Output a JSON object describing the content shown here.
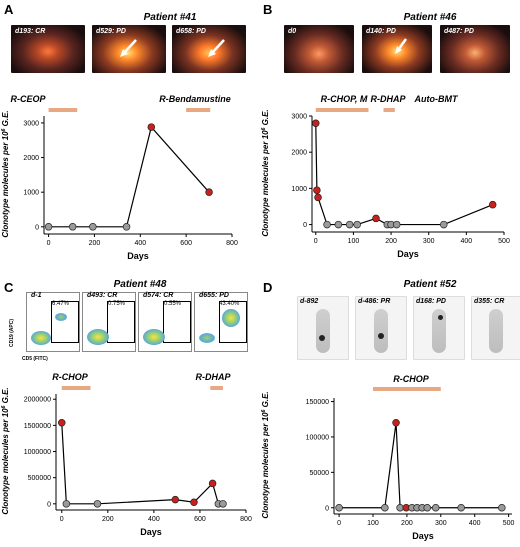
{
  "panels": {
    "A": {
      "label": "A",
      "title": "Patient #41",
      "scans": [
        "d193: CR",
        "d529: PD",
        "d658: PD"
      ],
      "regimens": [
        "R-CEOP",
        "R-Bendamustine"
      ]
    },
    "B": {
      "label": "B",
      "title": "Patient #46",
      "scans": [
        "d0",
        "d140: PD",
        "d487: PD"
      ],
      "regimens": [
        "R-CHOP, M",
        "R-DHAP",
        "Auto-BMT"
      ]
    },
    "C": {
      "label": "C",
      "title": "Patient #48",
      "flow": [
        "d-1",
        "d493: CR",
        "d574: CR",
        "d655: PD"
      ],
      "flow_pct": [
        "6.47%",
        "0.75%",
        "0.55%",
        "43.40%"
      ],
      "flow_ylabel": "CD19 (APC)",
      "flow_xlabel": "CD5 (FITC)",
      "regimens": [
        "R-CHOP",
        "R-DHAP"
      ]
    },
    "D": {
      "label": "D",
      "title": "Patient #52",
      "scans": [
        "d-892",
        "d-486: PR",
        "d168: PD",
        "d355: CR"
      ],
      "regimens": [
        "R-CHOP"
      ]
    }
  },
  "colors": {
    "grey": "#9a9a9a",
    "red": "#c8211d",
    "bar": "#e8a882"
  },
  "chart_data": [
    {
      "id": "A",
      "type": "line",
      "xlabel": "Days",
      "ylabel": "Clonotype molecules per 10^6 G.E.",
      "xlim": [
        -20,
        800
      ],
      "ylim": [
        -150,
        3200
      ],
      "xticks": [
        0,
        200,
        400,
        600,
        800
      ],
      "yticks": [
        0,
        1000,
        2000,
        3000
      ],
      "x": [
        0,
        105,
        193,
        340,
        448,
        700
      ],
      "y": [
        0,
        0,
        0,
        0,
        2880,
        1000
      ],
      "color": [
        "grey",
        "grey",
        "grey",
        "grey",
        "red",
        "red"
      ],
      "regimen_bars": [
        [
          0,
          125
        ],
        [
          600,
          705
        ]
      ]
    },
    {
      "id": "B",
      "type": "line",
      "xlabel": "Days",
      "ylabel": "Clonotype molecules per 10^6 G.E.",
      "xlim": [
        -10,
        500
      ],
      "ylim": [
        -150,
        3000
      ],
      "xticks": [
        0,
        100,
        200,
        300,
        400,
        500
      ],
      "yticks": [
        0,
        1000,
        2000,
        3000
      ],
      "x": [
        0,
        3,
        6,
        30,
        60,
        90,
        110,
        160,
        190,
        200,
        215,
        340,
        470
      ],
      "y": [
        2800,
        950,
        750,
        0,
        0,
        0,
        0,
        170,
        0,
        0,
        0,
        0,
        550
      ],
      "color": [
        "red",
        "red",
        "red",
        "grey",
        "grey",
        "grey",
        "grey",
        "red",
        "grey",
        "grey",
        "grey",
        "grey",
        "red"
      ],
      "regimen_bars": [
        [
          0,
          140
        ],
        [
          180,
          210
        ]
      ]
    },
    {
      "id": "C",
      "type": "line",
      "xlabel": "Days",
      "ylabel": "Clonotype molecules per 10^6 G.E.",
      "xlim": [
        -25,
        800
      ],
      "ylim": [
        -80000,
        2100000
      ],
      "xticks": [
        0,
        200,
        400,
        600,
        800
      ],
      "yticks": [
        0,
        500000,
        1000000,
        1500000,
        2000000
      ],
      "x": [
        0,
        20,
        155,
        493,
        574,
        655,
        680,
        700
      ],
      "y": [
        1550000,
        0,
        0,
        80000,
        30000,
        390000,
        0,
        0
      ],
      "color": [
        "red",
        "grey",
        "grey",
        "red",
        "red",
        "red",
        "grey",
        "grey"
      ],
      "regimen_bars": [
        [
          0,
          125
        ],
        [
          645,
          700
        ]
      ]
    },
    {
      "id": "D",
      "type": "line",
      "xlabel": "Days",
      "ylabel": "Clonotype molecules per 10^6 G.E.",
      "xlim": [
        -15,
        510
      ],
      "ylim": [
        -6000,
        155000
      ],
      "xticks": [
        0,
        100,
        200,
        300,
        400,
        500
      ],
      "yticks": [
        0,
        50000,
        100000,
        150000
      ],
      "x": [
        0,
        135,
        168,
        180,
        198,
        215,
        230,
        245,
        260,
        285,
        360,
        480
      ],
      "y": [
        0,
        0,
        120000,
        0,
        0,
        0,
        0,
        0,
        0,
        0,
        0,
        0
      ],
      "color": [
        "grey",
        "grey",
        "red",
        "grey",
        "red",
        "grey",
        "grey",
        "grey",
        "grey",
        "grey",
        "grey",
        "grey"
      ],
      "regimen_bars": [
        [
          100,
          300
        ]
      ]
    }
  ]
}
